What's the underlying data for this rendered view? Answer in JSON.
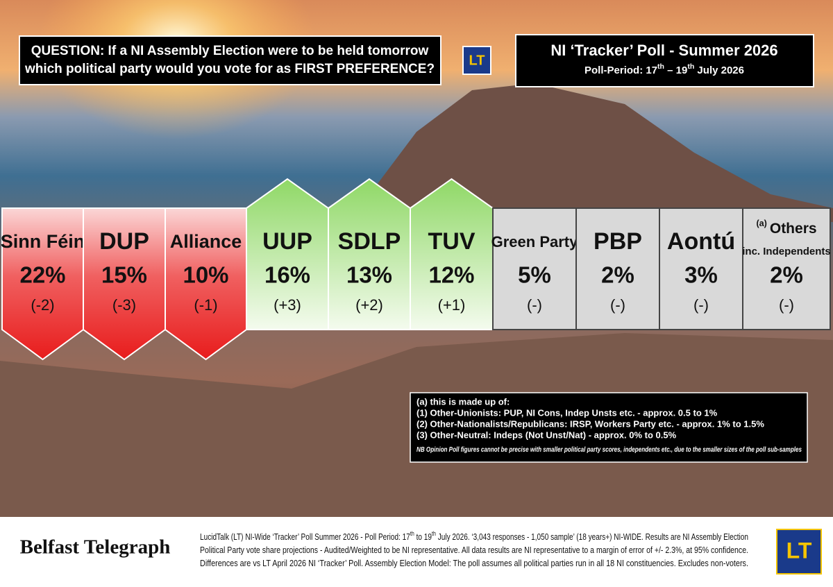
{
  "question": [
    "QUESTION: If a NI Assembly Election were to be held tomorrow",
    "which political party would you vote for as FIRST PREFERENCE?"
  ],
  "logo": "LT",
  "poll": {
    "title": "NI ‘Tracker’ Poll - Summer 2026",
    "period": [
      "Poll-Period: 17",
      "th",
      " – 19",
      "th",
      " July 2026"
    ]
  },
  "parties": [
    {
      "name": "Sinn Féin",
      "share": "22%",
      "change": "(-2)",
      "group": "down"
    },
    {
      "name": "DUP",
      "share": "15%",
      "change": "(-3)",
      "group": "down"
    },
    {
      "name": "Alliance",
      "share": "10%",
      "change": "(-1)",
      "group": "down"
    },
    {
      "name": "UUP",
      "share": "16%",
      "change": "(+3)",
      "group": "up"
    },
    {
      "name": "SDLP",
      "share": "13%",
      "change": "(+2)",
      "group": "up"
    },
    {
      "name": "TUV",
      "share": "12%",
      "change": "(+1)",
      "group": "up"
    },
    {
      "name": "Green Party",
      "share": "5%",
      "change": "(-)",
      "group": "same"
    },
    {
      "name": "PBP",
      "share": "2%",
      "change": "(-)",
      "group": "same"
    },
    {
      "name": "Aontú",
      "share": "3%",
      "change": "(-)",
      "group": "same"
    },
    {
      "note": "(a)",
      "name": "Others",
      "sub": "inc. Independents",
      "share": "2%",
      "change": "(-)",
      "group": "same"
    }
  ],
  "footnote": {
    "lines": [
      "(a) this is made up of:",
      "(1) Other-Unionists: PUP, NI Cons, Indep Unsts etc. - approx. 0.5 to 1%",
      "(2) Other-Nationalists/Republicans: IRSP, Workers Party etc. - approx. 1% to 1.5%",
      "(3) Other-Neutral: Indeps (Not Unst/Nat) - approx. 0% to 0.5%"
    ],
    "nb": "NB Opinion Poll figures cannot be precise with smaller political party scores, independents etc., due to the smaller sizes of the poll sub-samples"
  },
  "footer": {
    "brand": "Belfast Telegraph",
    "lines": [
      [
        "LucidTalk (LT) NI-Wide ‘Tracker’ Poll Summer 2026 - Poll Period: 17",
        "th",
        " to 19",
        "th",
        " July 2026. ‘3,043 responses - 1,050 sample’ (18 years+) NI-WIDE. Results are NI Assembly Election"
      ],
      [
        "Political Party vote share projections - Audited/Weighted to be NI representative.  All data results are NI representative to a margin of error of +/- 2.3%, at 95% confidence."
      ],
      [
        "Differences are vs LT April 2026 NI ‘Tracker’ Poll. Assembly Election Model: The poll assumes all political parties run in all 18 NI constituencies.  Excludes non-voters."
      ]
    ],
    "logo": "LT"
  }
}
